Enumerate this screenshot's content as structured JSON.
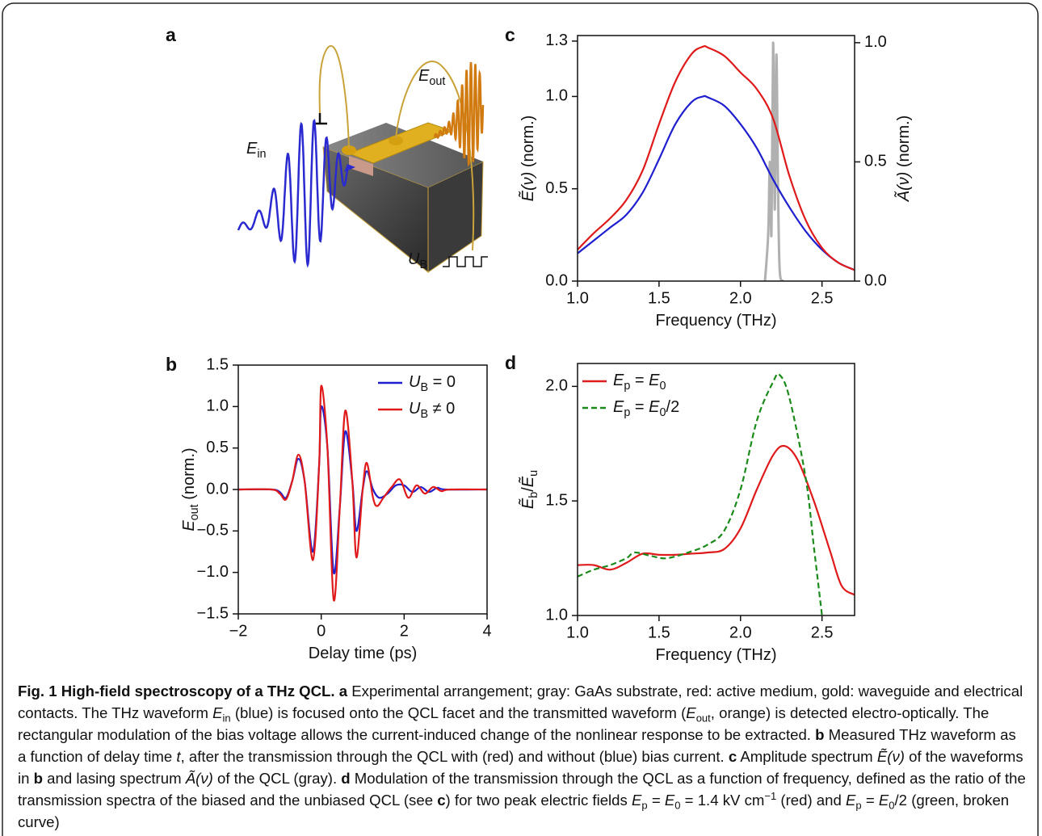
{
  "panels": {
    "a": "a"
  },
  "schematic_labels": {
    "E_in": [
      [
        "E",
        "i"
      ],
      [
        "in",
        "sub"
      ]
    ],
    "E_out": [
      [
        "E",
        "i"
      ],
      [
        "out",
        "sub"
      ]
    ],
    "U_B": [
      [
        "U",
        "i"
      ],
      [
        "B",
        "sub"
      ]
    ]
  },
  "chart_data": [
    {
      "type": "line",
      "label": "b",
      "xlabel": [
        [
          "Delay time (ps)",
          "n"
        ]
      ],
      "ylabel": [
        [
          "E",
          "i"
        ],
        [
          "out",
          "sub"
        ],
        [
          " (norm.)",
          "n"
        ]
      ],
      "xlim": [
        -2,
        4
      ],
      "xticks": [
        {
          "value": -2,
          "label": "−2"
        },
        0,
        2,
        4
      ],
      "ylim": [
        -1.5,
        1.5
      ],
      "yticks": [
        {
          "value": -1.5,
          "label": "−1.5"
        },
        {
          "value": -1,
          "label": "−1.0"
        },
        {
          "value": -0.5,
          "label": "−0.5"
        },
        {
          "value": 0,
          "label": "0.0"
        },
        {
          "value": 0.5,
          "label": "0.5"
        },
        {
          "value": 1,
          "label": "1.0"
        },
        {
          "value": 1.5,
          "label": "1.5"
        }
      ],
      "legend": "upper right",
      "series": [
        {
          "name": [
            [
              "U",
              "i"
            ],
            [
              "B",
              "sub"
            ],
            [
              " = 0",
              "n"
            ]
          ],
          "color": "#1f1fd0",
          "x": [
            -2,
            -1.2,
            -1.0,
            -0.85,
            -0.7,
            -0.55,
            -0.4,
            -0.2,
            -0.05,
            0.0,
            0.15,
            0.3,
            0.45,
            0.58,
            0.75,
            0.85,
            1.0,
            1.1,
            1.25,
            1.4,
            1.6,
            1.8,
            2.0,
            2.2,
            2.4,
            2.6,
            2.8,
            3.0,
            4
          ],
          "values": [
            0,
            0,
            -0.03,
            -0.1,
            0.1,
            0.37,
            0.1,
            -0.75,
            0.3,
            1.0,
            0.5,
            -1.0,
            -0.2,
            0.7,
            0.1,
            -0.5,
            0.0,
            0.22,
            0.0,
            -0.1,
            -0.05,
            0.05,
            0.05,
            -0.03,
            0.03,
            -0.03,
            0.02,
            0,
            0
          ]
        },
        {
          "name": [
            [
              "U",
              "i"
            ],
            [
              "B",
              "sub"
            ],
            [
              " ≠ 0",
              "n"
            ]
          ],
          "color": "#e01a1a",
          "x": [
            -2,
            -1.2,
            -1.0,
            -0.85,
            -0.7,
            -0.55,
            -0.4,
            -0.2,
            -0.05,
            0.0,
            0.15,
            0.3,
            0.45,
            0.58,
            0.75,
            0.85,
            1.0,
            1.1,
            1.25,
            1.35,
            1.5,
            1.7,
            1.9,
            2.1,
            2.3,
            2.5,
            2.7,
            2.9,
            3.1,
            4
          ],
          "values": [
            0,
            0,
            -0.05,
            -0.12,
            0.1,
            0.42,
            0.1,
            -0.85,
            0.3,
            1.25,
            0.5,
            -1.33,
            -0.2,
            0.95,
            0.1,
            -0.82,
            0.0,
            0.32,
            -0.1,
            -0.2,
            -0.1,
            0.03,
            0.12,
            -0.1,
            0.05,
            -0.05,
            0.03,
            -0.02,
            0,
            0
          ]
        }
      ]
    },
    {
      "type": "line",
      "label": "c",
      "xlabel": [
        [
          "Frequency (THz)",
          "n"
        ]
      ],
      "ylabel": [
        [
          "Ẽ(ν)",
          "i"
        ],
        [
          " (norm.)",
          "n"
        ]
      ],
      "y2label": [
        [
          "Ã(ν)",
          "i"
        ],
        [
          " (norm.)",
          "n"
        ]
      ],
      "xlim": [
        1.0,
        2.7
      ],
      "xticks": [
        {
          "value": 1,
          "label": "1.0"
        },
        {
          "value": 1.5,
          "label": "1.5"
        },
        {
          "value": 2,
          "label": "2.0"
        },
        {
          "value": 2.5,
          "label": "2.5"
        }
      ],
      "ylim": [
        0,
        1.33
      ],
      "yticks": [
        {
          "value": 0,
          "label": "0.0"
        },
        {
          "value": 0.5,
          "label": "0.5"
        },
        {
          "value": 1,
          "label": "1.0"
        },
        {
          "value": 1.3,
          "label": "1.3"
        }
      ],
      "y2lim": [
        0,
        1.03
      ],
      "y2ticks": [
        {
          "value": 0,
          "label": "0.0"
        },
        {
          "value": 0.5,
          "label": "0.5"
        },
        {
          "value": 1,
          "label": "1.0"
        }
      ],
      "series": [
        {
          "color": "#b0b0b0",
          "axis": "y2",
          "x": [
            2.15,
            2.17,
            2.18,
            2.19,
            2.2,
            2.21,
            2.22,
            2.23,
            2.24,
            2.26
          ],
          "values": [
            0,
            0.2,
            0.5,
            0.2,
            1.0,
            0.3,
            0.95,
            0.4,
            0.05,
            0
          ]
        },
        {
          "color": "#1f1fd0",
          "x": [
            1.0,
            1.1,
            1.2,
            1.3,
            1.4,
            1.5,
            1.6,
            1.7,
            1.77,
            1.8,
            1.9,
            2.0,
            2.1,
            2.2,
            2.3,
            2.4,
            2.5,
            2.6,
            2.7
          ],
          "values": [
            0.15,
            0.22,
            0.29,
            0.36,
            0.48,
            0.66,
            0.85,
            0.97,
            1.0,
            0.995,
            0.95,
            0.85,
            0.72,
            0.55,
            0.4,
            0.27,
            0.17,
            0.1,
            0.06
          ]
        },
        {
          "color": "#e01a1a",
          "x": [
            1.0,
            1.1,
            1.2,
            1.3,
            1.4,
            1.5,
            1.6,
            1.7,
            1.77,
            1.8,
            1.9,
            2.0,
            2.1,
            2.2,
            2.3,
            2.4,
            2.5,
            2.6,
            2.7
          ],
          "values": [
            0.17,
            0.26,
            0.34,
            0.44,
            0.6,
            0.85,
            1.08,
            1.23,
            1.27,
            1.265,
            1.22,
            1.13,
            1.04,
            0.88,
            0.57,
            0.33,
            0.18,
            0.1,
            0.06
          ]
        }
      ]
    },
    {
      "type": "line",
      "label": "d",
      "xlabel": [
        [
          "Frequency (THz)",
          "n"
        ]
      ],
      "ylabel": [
        [
          "Ẽ",
          "i"
        ],
        [
          "b",
          "sub"
        ],
        [
          "/",
          "n"
        ],
        [
          "Ẽ",
          "i"
        ],
        [
          "u",
          "sub"
        ]
      ],
      "xlim": [
        1.0,
        2.7
      ],
      "xticks": [
        {
          "value": 1,
          "label": "1.0"
        },
        {
          "value": 1.5,
          "label": "1.5"
        },
        {
          "value": 2,
          "label": "2.0"
        },
        {
          "value": 2.5,
          "label": "2.5"
        }
      ],
      "ylim": [
        1.0,
        2.1
      ],
      "yticks": [
        {
          "value": 1,
          "label": "1.0"
        },
        {
          "value": 1.5,
          "label": "1.5"
        },
        {
          "value": 2,
          "label": "2.0"
        }
      ],
      "legend": "upper left",
      "series": [
        {
          "name": [
            [
              "E",
              "i"
            ],
            [
              "p",
              "sub"
            ],
            [
              " = ",
              "n"
            ],
            [
              "E",
              "i"
            ],
            [
              "0",
              "sub"
            ]
          ],
          "color": "#e01a1a",
          "dash": false,
          "x": [
            1.0,
            1.1,
            1.2,
            1.3,
            1.4,
            1.5,
            1.6,
            1.7,
            1.8,
            1.9,
            2.0,
            2.1,
            2.2,
            2.27,
            2.35,
            2.45,
            2.55,
            2.62,
            2.7
          ],
          "values": [
            1.22,
            1.22,
            1.2,
            1.23,
            1.27,
            1.265,
            1.265,
            1.27,
            1.275,
            1.29,
            1.38,
            1.55,
            1.7,
            1.74,
            1.68,
            1.5,
            1.28,
            1.13,
            1.09
          ]
        },
        {
          "name": [
            [
              "E",
              "i"
            ],
            [
              "p",
              "sub"
            ],
            [
              " = ",
              "n"
            ],
            [
              "E",
              "i"
            ],
            [
              "0",
              "sub"
            ],
            [
              "/2",
              "n"
            ]
          ],
          "color": "#1a8a1a",
          "dash": true,
          "x": [
            1.0,
            1.1,
            1.2,
            1.3,
            1.35,
            1.45,
            1.55,
            1.7,
            1.8,
            1.9,
            2.0,
            2.1,
            2.2,
            2.24,
            2.3,
            2.4,
            2.45,
            2.5
          ],
          "values": [
            1.17,
            1.2,
            1.22,
            1.25,
            1.275,
            1.26,
            1.25,
            1.28,
            1.31,
            1.37,
            1.55,
            1.85,
            2.02,
            2.05,
            1.95,
            1.6,
            1.3,
            1.0
          ]
        }
      ]
    }
  ],
  "caption": [
    [
      "Fig. 1 High-field spectroscopy of a THz QCL.",
      "b"
    ],
    [
      " ",
      "n"
    ],
    [
      "a",
      "b"
    ],
    [
      " Experimental arrangement; gray: GaAs substrate, red: active medium, gold: waveguide and electrical contacts. The THz waveform ",
      "n"
    ],
    [
      "E",
      "i"
    ],
    [
      "in",
      "sub"
    ],
    [
      " (blue) is focused onto the QCL facet and the transmitted waveform (",
      "n"
    ],
    [
      "E",
      "i"
    ],
    [
      "out",
      "sub"
    ],
    [
      ", orange) is detected electro-optically. The rectangular modulation of the bias voltage allows the current-induced change of the nonlinear response to be extracted. ",
      "n"
    ],
    [
      "b",
      "b"
    ],
    [
      " Measured THz waveform as a function of delay time ",
      "n"
    ],
    [
      "t",
      "i"
    ],
    [
      ", after the transmission through the QCL with (red) and without (blue) bias current. ",
      "n"
    ],
    [
      "c",
      "b"
    ],
    [
      " Amplitude spectrum ",
      "n"
    ],
    [
      "Ẽ(ν)",
      "i"
    ],
    [
      " of the waveforms in ",
      "n"
    ],
    [
      "b",
      "b"
    ],
    [
      " and lasing spectrum ",
      "n"
    ],
    [
      "Ã(ν)",
      "i"
    ],
    [
      " of the QCL (gray). ",
      "n"
    ],
    [
      "d",
      "b"
    ],
    [
      " Modulation of the transmission through the QCL as a function of frequency, defined as the ratio of the transmission spectra of the biased and the unbiased QCL (see ",
      "n"
    ],
    [
      "c",
      "b"
    ],
    [
      ") for two peak electric fields ",
      "n"
    ],
    [
      "E",
      "i"
    ],
    [
      "p",
      "sub"
    ],
    [
      " = ",
      "n"
    ],
    [
      "E",
      "i"
    ],
    [
      "0",
      "sub"
    ],
    [
      " = 1.4 kV cm",
      "n"
    ],
    [
      "−1",
      "sup"
    ],
    [
      " (red) and ",
      "n"
    ],
    [
      "E",
      "i"
    ],
    [
      "p",
      "sub"
    ],
    [
      " = ",
      "n"
    ],
    [
      "E",
      "i"
    ],
    [
      "0",
      "sub"
    ],
    [
      "/2 (green, broken curve)",
      "n"
    ]
  ]
}
